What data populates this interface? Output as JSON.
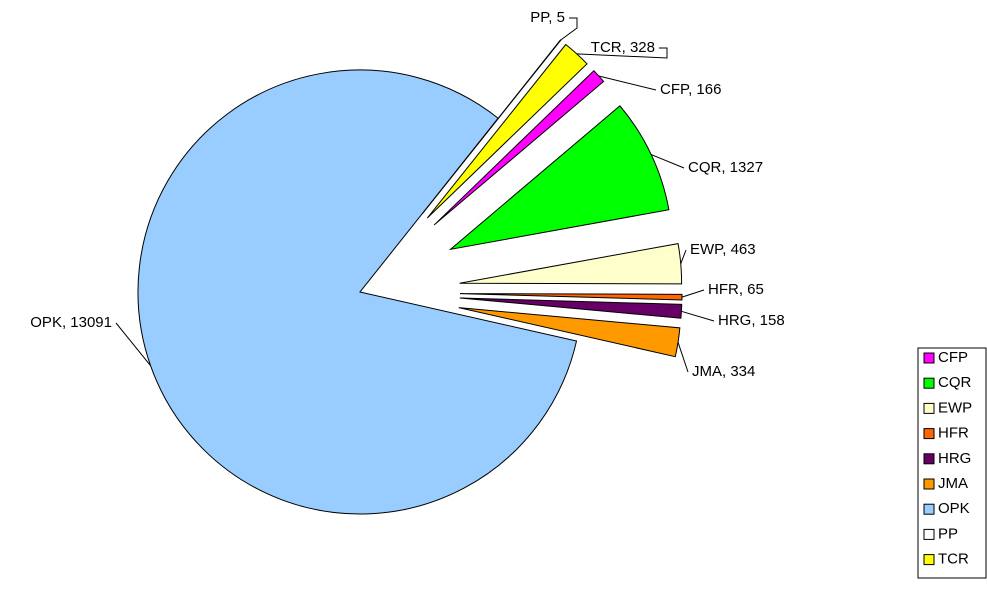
{
  "chart_data": {
    "type": "pie",
    "categories": [
      "CFP",
      "CQR",
      "EWP",
      "HFR",
      "HRG",
      "JMA",
      "OPK",
      "PP",
      "TCR"
    ],
    "values": [
      166,
      1327,
      463,
      65,
      158,
      334,
      13091,
      5,
      328
    ],
    "value_labels": [
      "CFP, 166",
      "CQR, 1327",
      "EWP, 463",
      "HFR, 65",
      "HRG, 158",
      "JMA, 334",
      "OPK, 13091",
      "PP, 5",
      "TCR, 328"
    ],
    "colors": [
      "#ff00ff",
      "#00ff00",
      "#ffffcc",
      "#ff6600",
      "#660066",
      "#ff9900",
      "#99ccff",
      "#ffffff",
      "#ffff00"
    ],
    "legend": "right"
  }
}
